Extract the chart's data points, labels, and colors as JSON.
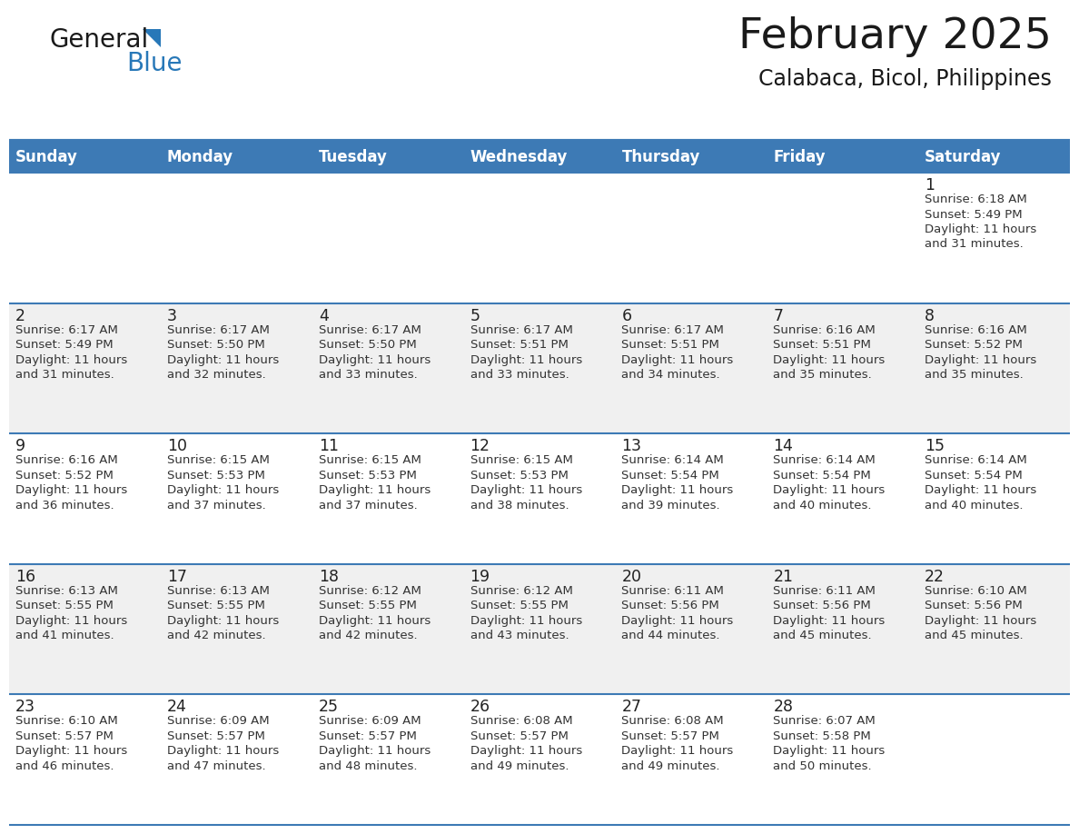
{
  "title": "February 2025",
  "subtitle": "Calabaca, Bicol, Philippines",
  "header_bg_color": "#3d7ab5",
  "header_text_color": "#ffffff",
  "weekdays": [
    "Sunday",
    "Monday",
    "Tuesday",
    "Wednesday",
    "Thursday",
    "Friday",
    "Saturday"
  ],
  "row_bg_light": "#f0f0f0",
  "row_bg_white": "#ffffff",
  "cell_border_color": "#3d7ab5",
  "day_num_color": "#222222",
  "info_text_color": "#333333",
  "logo_text_color": "#1a1a1a",
  "logo_blue_color": "#2878b8",
  "title_color": "#1a1a1a",
  "subtitle_color": "#1a1a1a",
  "calendar": [
    [
      null,
      null,
      null,
      null,
      null,
      null,
      {
        "day": 1,
        "sunrise": "6:18 AM",
        "sunset": "5:49 PM",
        "daylight": "11 hours and 31 minutes."
      }
    ],
    [
      {
        "day": 2,
        "sunrise": "6:17 AM",
        "sunset": "5:49 PM",
        "daylight": "11 hours and 31 minutes."
      },
      {
        "day": 3,
        "sunrise": "6:17 AM",
        "sunset": "5:50 PM",
        "daylight": "11 hours and 32 minutes."
      },
      {
        "day": 4,
        "sunrise": "6:17 AM",
        "sunset": "5:50 PM",
        "daylight": "11 hours and 33 minutes."
      },
      {
        "day": 5,
        "sunrise": "6:17 AM",
        "sunset": "5:51 PM",
        "daylight": "11 hours and 33 minutes."
      },
      {
        "day": 6,
        "sunrise": "6:17 AM",
        "sunset": "5:51 PM",
        "daylight": "11 hours and 34 minutes."
      },
      {
        "day": 7,
        "sunrise": "6:16 AM",
        "sunset": "5:51 PM",
        "daylight": "11 hours and 35 minutes."
      },
      {
        "day": 8,
        "sunrise": "6:16 AM",
        "sunset": "5:52 PM",
        "daylight": "11 hours and 35 minutes."
      }
    ],
    [
      {
        "day": 9,
        "sunrise": "6:16 AM",
        "sunset": "5:52 PM",
        "daylight": "11 hours and 36 minutes."
      },
      {
        "day": 10,
        "sunrise": "6:15 AM",
        "sunset": "5:53 PM",
        "daylight": "11 hours and 37 minutes."
      },
      {
        "day": 11,
        "sunrise": "6:15 AM",
        "sunset": "5:53 PM",
        "daylight": "11 hours and 37 minutes."
      },
      {
        "day": 12,
        "sunrise": "6:15 AM",
        "sunset": "5:53 PM",
        "daylight": "11 hours and 38 minutes."
      },
      {
        "day": 13,
        "sunrise": "6:14 AM",
        "sunset": "5:54 PM",
        "daylight": "11 hours and 39 minutes."
      },
      {
        "day": 14,
        "sunrise": "6:14 AM",
        "sunset": "5:54 PM",
        "daylight": "11 hours and 40 minutes."
      },
      {
        "day": 15,
        "sunrise": "6:14 AM",
        "sunset": "5:54 PM",
        "daylight": "11 hours and 40 minutes."
      }
    ],
    [
      {
        "day": 16,
        "sunrise": "6:13 AM",
        "sunset": "5:55 PM",
        "daylight": "11 hours and 41 minutes."
      },
      {
        "day": 17,
        "sunrise": "6:13 AM",
        "sunset": "5:55 PM",
        "daylight": "11 hours and 42 minutes."
      },
      {
        "day": 18,
        "sunrise": "6:12 AM",
        "sunset": "5:55 PM",
        "daylight": "11 hours and 42 minutes."
      },
      {
        "day": 19,
        "sunrise": "6:12 AM",
        "sunset": "5:55 PM",
        "daylight": "11 hours and 43 minutes."
      },
      {
        "day": 20,
        "sunrise": "6:11 AM",
        "sunset": "5:56 PM",
        "daylight": "11 hours and 44 minutes."
      },
      {
        "day": 21,
        "sunrise": "6:11 AM",
        "sunset": "5:56 PM",
        "daylight": "11 hours and 45 minutes."
      },
      {
        "day": 22,
        "sunrise": "6:10 AM",
        "sunset": "5:56 PM",
        "daylight": "11 hours and 45 minutes."
      }
    ],
    [
      {
        "day": 23,
        "sunrise": "6:10 AM",
        "sunset": "5:57 PM",
        "daylight": "11 hours and 46 minutes."
      },
      {
        "day": 24,
        "sunrise": "6:09 AM",
        "sunset": "5:57 PM",
        "daylight": "11 hours and 47 minutes."
      },
      {
        "day": 25,
        "sunrise": "6:09 AM",
        "sunset": "5:57 PM",
        "daylight": "11 hours and 48 minutes."
      },
      {
        "day": 26,
        "sunrise": "6:08 AM",
        "sunset": "5:57 PM",
        "daylight": "11 hours and 49 minutes."
      },
      {
        "day": 27,
        "sunrise": "6:08 AM",
        "sunset": "5:57 PM",
        "daylight": "11 hours and 49 minutes."
      },
      {
        "day": 28,
        "sunrise": "6:07 AM",
        "sunset": "5:58 PM",
        "daylight": "11 hours and 50 minutes."
      },
      null
    ]
  ]
}
